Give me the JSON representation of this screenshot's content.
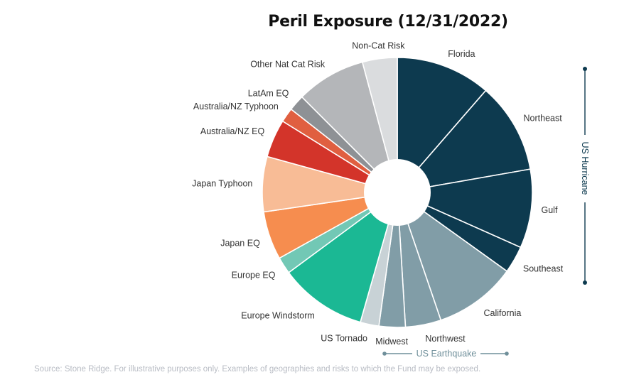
{
  "chart_data": {
    "type": "pie",
    "title": "Peril Exposure (12/31/2022)",
    "slices": [
      {
        "label": "Florida",
        "value": 11.2,
        "color": "#0d3a4f"
      },
      {
        "label": "Northeast",
        "value": 10.7,
        "color": "#0d3a4f"
      },
      {
        "label": "Gulf",
        "value": 9.3,
        "color": "#0d3a4f"
      },
      {
        "label": "Southeast",
        "value": 3.2,
        "color": "#0d3a4f"
      },
      {
        "label": "California",
        "value": 9.7,
        "color": "#819da7"
      },
      {
        "label": "Northwest",
        "value": 4.2,
        "color": "#819da7"
      },
      {
        "label": "Midwest",
        "value": 3.1,
        "color": "#819da7"
      },
      {
        "label": "US Tornado",
        "value": 2.2,
        "color": "#c8d2d6"
      },
      {
        "label": "Europe Windstorm",
        "value": 10.3,
        "color": "#1bb894"
      },
      {
        "label": "Europe EQ",
        "value": 2.0,
        "color": "#72c8b5"
      },
      {
        "label": "Japan EQ",
        "value": 5.7,
        "color": "#f68d4f"
      },
      {
        "label": "Japan Typhoon",
        "value": 6.5,
        "color": "#f8bc96"
      },
      {
        "label": "Australia/NZ EQ",
        "value": 4.5,
        "color": "#d3342a"
      },
      {
        "label": "Australia/NZ Typhoon",
        "value": 1.7,
        "color": "#e05f40"
      },
      {
        "label": "LatAm EQ",
        "value": 1.9,
        "color": "#8e9195"
      },
      {
        "label": "Other Nat Cat Risk",
        "value": 8.2,
        "color": "#b4b6b9"
      },
      {
        "label": "Non-Cat Risk",
        "value": 4.1,
        "color": "#dadcde"
      }
    ],
    "groups": [
      {
        "label": "US Hurricane",
        "color": "#0d3a4f"
      },
      {
        "label": "US Earthquake",
        "color": "#6f8f9a"
      }
    ]
  },
  "footnote": "Source: Stone Ridge. For illustrative purposes only. Examples of geographies and risks to which the Fund may be exposed."
}
